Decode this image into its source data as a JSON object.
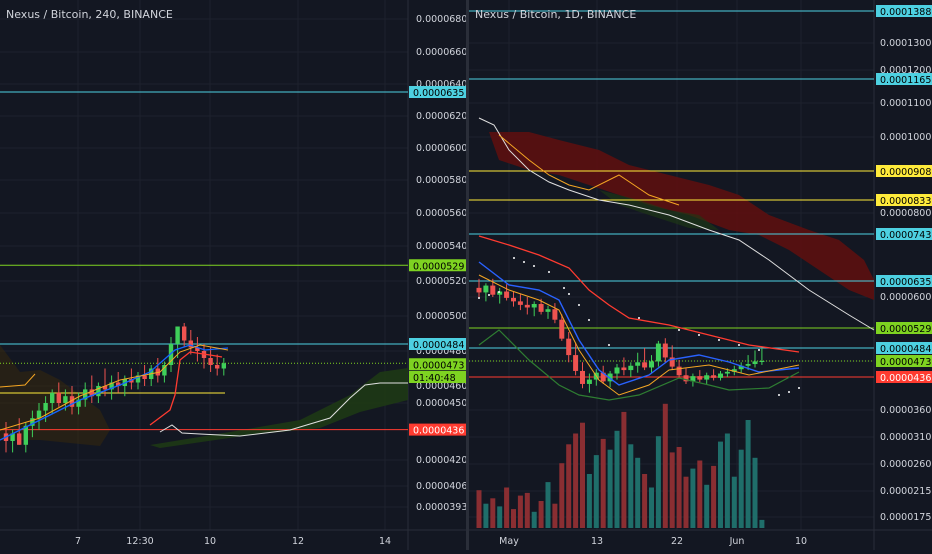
{
  "colors": {
    "background": "#131722",
    "grid": "#1e222d",
    "axis_text": "#d1d4dc",
    "up": "#26a69a",
    "up_bright": "#3fcf5a",
    "down": "#ef5350",
    "cyan": "#4dd0e1",
    "green": "#7ed321",
    "yellow": "#ffeb3b",
    "red": "#ff3b30",
    "orange": "#f5a623",
    "blue": "#2962ff",
    "white_line": "#e0e0e0",
    "cloud_red": "#5c1010",
    "cloud_green": "#1e3b14"
  },
  "chart_data": [
    {
      "type": "candlestick",
      "title": "Nexus / Bitcoin, 240, BINANCE",
      "y_ticks": [
        "0.0000680",
        "0.0000660",
        "0.0000640",
        "0.0000620",
        "0.0000600",
        "0.0000580",
        "0.0000560",
        "0.0000540",
        "0.0000520",
        "0.0000500",
        "0.0000480",
        "0.0000460",
        "0.0000450",
        "0.0000420",
        "0.0000406",
        "0.0000393"
      ],
      "x_ticks": [
        "7",
        "12:30",
        "10",
        "12",
        "14"
      ],
      "ylim": [
        3.85e-05,
        6.9e-05
      ],
      "horizontal_lines": [
        {
          "value": 6.35e-05,
          "label": "0.0000635",
          "color": "cyan"
        },
        {
          "value": 5.29e-05,
          "label": "0.0000529",
          "color": "green"
        },
        {
          "value": 4.84e-05,
          "label": "0.0000484",
          "color": "cyan"
        },
        {
          "value": 4.36e-05,
          "label": "0.0000436",
          "color": "red"
        }
      ],
      "price_labels": [
        {
          "value": 4.73e-05,
          "label": "0.0000473",
          "color": "green"
        },
        {
          "value": 4.65e-05,
          "label": "01:40:48",
          "color": "green"
        }
      ],
      "candles": [
        {
          "o": 434,
          "h": 440,
          "l": 424,
          "c": 430
        },
        {
          "o": 430,
          "h": 436,
          "l": 424,
          "c": 434
        },
        {
          "o": 434,
          "h": 442,
          "l": 428,
          "c": 428
        },
        {
          "o": 428,
          "h": 440,
          "l": 424,
          "c": 438
        },
        {
          "o": 438,
          "h": 446,
          "l": 432,
          "c": 442
        },
        {
          "o": 442,
          "h": 450,
          "l": 436,
          "c": 446
        },
        {
          "o": 446,
          "h": 454,
          "l": 440,
          "c": 450
        },
        {
          "o": 450,
          "h": 458,
          "l": 444,
          "c": 456
        },
        {
          "o": 456,
          "h": 462,
          "l": 448,
          "c": 450
        },
        {
          "o": 450,
          "h": 458,
          "l": 446,
          "c": 454
        },
        {
          "o": 454,
          "h": 460,
          "l": 444,
          "c": 448
        },
        {
          "o": 448,
          "h": 456,
          "l": 444,
          "c": 452
        },
        {
          "o": 452,
          "h": 462,
          "l": 448,
          "c": 458
        },
        {
          "o": 458,
          "h": 466,
          "l": 450,
          "c": 454
        },
        {
          "o": 454,
          "h": 462,
          "l": 450,
          "c": 460
        },
        {
          "o": 460,
          "h": 470,
          "l": 454,
          "c": 458
        },
        {
          "o": 458,
          "h": 466,
          "l": 452,
          "c": 462
        },
        {
          "o": 462,
          "h": 468,
          "l": 456,
          "c": 460
        },
        {
          "o": 460,
          "h": 466,
          "l": 454,
          "c": 464
        },
        {
          "o": 464,
          "h": 470,
          "l": 458,
          "c": 462
        },
        {
          "o": 462,
          "h": 468,
          "l": 458,
          "c": 466
        },
        {
          "o": 466,
          "h": 472,
          "l": 460,
          "c": 464
        },
        {
          "o": 464,
          "h": 472,
          "l": 460,
          "c": 470
        },
        {
          "o": 470,
          "h": 476,
          "l": 462,
          "c": 466
        },
        {
          "o": 466,
          "h": 474,
          "l": 462,
          "c": 472
        },
        {
          "o": 472,
          "h": 488,
          "l": 468,
          "c": 484
        },
        {
          "o": 484,
          "h": 494,
          "l": 476,
          "c": 494
        },
        {
          "o": 494,
          "h": 496,
          "l": 482,
          "c": 486
        },
        {
          "o": 486,
          "h": 492,
          "l": 478,
          "c": 482
        },
        {
          "o": 482,
          "h": 488,
          "l": 474,
          "c": 480
        },
        {
          "o": 480,
          "h": 484,
          "l": 470,
          "c": 476
        },
        {
          "o": 476,
          "h": 482,
          "l": 468,
          "c": 472
        },
        {
          "o": 472,
          "h": 478,
          "l": 466,
          "c": 470
        },
        {
          "o": 470,
          "h": 476,
          "l": 466,
          "c": 473
        }
      ]
    },
    {
      "type": "candlestick",
      "title": "Nexus / Bitcoin, 1D, BINANCE",
      "y_ticks": [
        "0.0001388",
        "0.0001300",
        "0.0001200",
        "0.0001165",
        "0.0001100",
        "0.0001000",
        "0.0000908",
        "0.0000833",
        "0.0000800",
        "0.0000743",
        "0.0000635",
        "0.0000600",
        "0.0000529",
        "0.0000484",
        "0.0000473",
        "0.0000436",
        "0.0000360",
        "0.0000310",
        "0.0000260",
        "0.0000215",
        "0.0000175"
      ],
      "x_ticks": [
        "May",
        "13",
        "22",
        "Jun",
        "10"
      ],
      "horizontal_lines": [
        {
          "value": 0.0001388,
          "label": "0.0001388",
          "color": "cyan"
        },
        {
          "value": 0.0001165,
          "label": "0.0001165",
          "color": "cyan"
        },
        {
          "value": 9.08e-05,
          "label": "0.0000908",
          "color": "yellow"
        },
        {
          "value": 8.33e-05,
          "label": "0.0000833",
          "color": "yellow"
        },
        {
          "value": 7.43e-05,
          "label": "0.0000743",
          "color": "cyan"
        },
        {
          "value": 6.35e-05,
          "label": "0.0000635",
          "color": "cyan"
        },
        {
          "value": 5.29e-05,
          "label": "0.0000529",
          "color": "green"
        },
        {
          "value": 4.84e-05,
          "label": "0.0000484",
          "color": "cyan"
        },
        {
          "value": 4.36e-05,
          "label": "0.0000436",
          "color": "red"
        }
      ],
      "price_labels": [
        {
          "value": 4.73e-05,
          "label": "0.0000473",
          "color": "green"
        }
      ],
      "candles": [
        {
          "o": 620,
          "h": 640,
          "l": 600,
          "c": 610
        },
        {
          "o": 610,
          "h": 630,
          "l": 590,
          "c": 625
        },
        {
          "o": 625,
          "h": 640,
          "l": 600,
          "c": 605
        },
        {
          "o": 605,
          "h": 620,
          "l": 585,
          "c": 612
        },
        {
          "o": 612,
          "h": 628,
          "l": 592,
          "c": 598
        },
        {
          "o": 598,
          "h": 612,
          "l": 578,
          "c": 590
        },
        {
          "o": 590,
          "h": 606,
          "l": 570,
          "c": 582
        },
        {
          "o": 582,
          "h": 600,
          "l": 560,
          "c": 576
        },
        {
          "o": 576,
          "h": 590,
          "l": 556,
          "c": 584
        },
        {
          "o": 584,
          "h": 596,
          "l": 560,
          "c": 566
        },
        {
          "o": 566,
          "h": 580,
          "l": 550,
          "c": 572
        },
        {
          "o": 572,
          "h": 586,
          "l": 540,
          "c": 548
        },
        {
          "o": 548,
          "h": 560,
          "l": 500,
          "c": 505
        },
        {
          "o": 505,
          "h": 520,
          "l": 470,
          "c": 478
        },
        {
          "o": 478,
          "h": 496,
          "l": 440,
          "c": 450
        },
        {
          "o": 450,
          "h": 470,
          "l": 410,
          "c": 420
        },
        {
          "o": 420,
          "h": 444,
          "l": 400,
          "c": 430
        },
        {
          "o": 430,
          "h": 454,
          "l": 416,
          "c": 446
        },
        {
          "o": 446,
          "h": 462,
          "l": 420,
          "c": 426
        },
        {
          "o": 426,
          "h": 450,
          "l": 412,
          "c": 444
        },
        {
          "o": 444,
          "h": 466,
          "l": 430,
          "c": 458
        },
        {
          "o": 458,
          "h": 476,
          "l": 440,
          "c": 452
        },
        {
          "o": 452,
          "h": 470,
          "l": 436,
          "c": 462
        },
        {
          "o": 462,
          "h": 480,
          "l": 446,
          "c": 470
        },
        {
          "o": 470,
          "h": 484,
          "l": 452,
          "c": 458
        },
        {
          "o": 458,
          "h": 478,
          "l": 444,
          "c": 472
        },
        {
          "o": 472,
          "h": 500,
          "l": 460,
          "c": 494
        },
        {
          "o": 494,
          "h": 506,
          "l": 470,
          "c": 476
        },
        {
          "o": 476,
          "h": 490,
          "l": 452,
          "c": 460
        },
        {
          "o": 460,
          "h": 474,
          "l": 436,
          "c": 440
        },
        {
          "o": 440,
          "h": 456,
          "l": 420,
          "c": 426
        },
        {
          "o": 426,
          "h": 444,
          "l": 414,
          "c": 438
        },
        {
          "o": 438,
          "h": 452,
          "l": 424,
          "c": 430
        },
        {
          "o": 430,
          "h": 446,
          "l": 420,
          "c": 440
        },
        {
          "o": 440,
          "h": 454,
          "l": 428,
          "c": 434
        },
        {
          "o": 434,
          "h": 450,
          "l": 428,
          "c": 444
        },
        {
          "o": 444,
          "h": 456,
          "l": 436,
          "c": 448
        },
        {
          "o": 448,
          "h": 462,
          "l": 440,
          "c": 454
        },
        {
          "o": 454,
          "h": 470,
          "l": 446,
          "c": 462
        },
        {
          "o": 462,
          "h": 478,
          "l": 452,
          "c": 466
        },
        {
          "o": 466,
          "h": 482,
          "l": 458,
          "c": 472
        },
        {
          "o": 472,
          "h": 484,
          "l": 464,
          "c": 473
        }
      ],
      "volumes": [
        28,
        18,
        22,
        16,
        30,
        14,
        24,
        26,
        12,
        20,
        34,
        18,
        48,
        62,
        70,
        78,
        40,
        54,
        66,
        58,
        72,
        86,
        62,
        52,
        40,
        30,
        68,
        92,
        56,
        60,
        38,
        44,
        50,
        32,
        46,
        64,
        70,
        38,
        58,
        80,
        52,
        6
      ]
    }
  ]
}
